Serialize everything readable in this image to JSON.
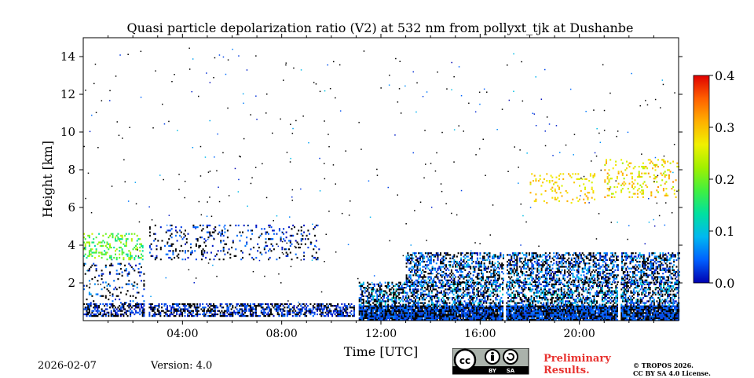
{
  "chart_data": {
    "type": "heatmap",
    "title": "Quasi particle depolarization ratio (V2) at 532 nm from pollyxt_tjk at Dushanbe",
    "xlabel": "Time [UTC]",
    "ylabel": "Height [km]",
    "x_range_hours": [
      0,
      24
    ],
    "y_range_km": [
      0,
      15
    ],
    "x_ticks": [
      {
        "value": 4,
        "label": "04:00"
      },
      {
        "value": 8,
        "label": "08:00"
      },
      {
        "value": 12,
        "label": "12:00"
      },
      {
        "value": 16,
        "label": "16:00"
      },
      {
        "value": 20,
        "label": "20:00"
      }
    ],
    "y_ticks": [
      {
        "value": 2,
        "label": "2"
      },
      {
        "value": 4,
        "label": "4"
      },
      {
        "value": 6,
        "label": "6"
      },
      {
        "value": 8,
        "label": "8"
      },
      {
        "value": 10,
        "label": "10"
      },
      {
        "value": 12,
        "label": "12"
      },
      {
        "value": 14,
        "label": "14"
      }
    ],
    "colorbar": {
      "range": [
        0.0,
        0.4
      ],
      "ticks": [
        {
          "value": 0.0,
          "label": "0.0"
        },
        {
          "value": 0.1,
          "label": "0.1"
        },
        {
          "value": 0.2,
          "label": "0.2"
        },
        {
          "value": 0.3,
          "label": "0.3"
        },
        {
          "value": 0.4,
          "label": "0.4"
        }
      ],
      "colors": [
        "#0000b0",
        "#0060ff",
        "#00b8f0",
        "#00e0a0",
        "#40f040",
        "#a0f000",
        "#f0f000",
        "#ffb000",
        "#ff6000",
        "#e00000"
      ]
    },
    "data_gaps_hours": [
      [
        2.45,
        2.6
      ],
      [
        10.9,
        11.05
      ],
      [
        16.93,
        17.03
      ],
      [
        21.55,
        21.65
      ]
    ],
    "layers": [
      {
        "name": "boundary layer night",
        "t": [
          0,
          10.9
        ],
        "h": [
          0.2,
          0.9
        ],
        "value_range": [
          0.0,
          0.05
        ],
        "density": 0.55
      },
      {
        "name": "residual aerosol night",
        "t": [
          0,
          2.45
        ],
        "h": [
          0.9,
          3.0
        ],
        "value_range": [
          0.0,
          0.08
        ],
        "density": 0.12
      },
      {
        "name": "depolarizing layer",
        "t": [
          0,
          2.4
        ],
        "h": [
          3.2,
          4.6
        ],
        "value_range": [
          0.12,
          0.25
        ],
        "density": 0.25
      },
      {
        "name": "elevated layer morning",
        "t": [
          2.6,
          9.5
        ],
        "h": [
          3.2,
          5.0
        ],
        "value_range": [
          0.0,
          0.06
        ],
        "density": 0.14
      },
      {
        "name": "surface layer",
        "t": [
          11.05,
          24
        ],
        "h": [
          0.0,
          0.8
        ],
        "value_range": [
          0.02,
          0.06
        ],
        "density": 0.95
      },
      {
        "name": "boundary layer day",
        "t": [
          11.05,
          24
        ],
        "h": [
          0.8,
          2.0
        ],
        "value_range": [
          0.0,
          0.12
        ],
        "density": 0.5
      },
      {
        "name": "mixed layer top",
        "t": [
          13.0,
          24
        ],
        "h": [
          2.0,
          3.6
        ],
        "value_range": [
          0.0,
          0.1
        ],
        "density": 0.45
      },
      {
        "name": "cirrus evening",
        "t": [
          18.0,
          20.6
        ],
        "h": [
          6.2,
          7.8
        ],
        "value_range": [
          0.25,
          0.32
        ],
        "density": 0.12
      },
      {
        "name": "cirrus night",
        "t": [
          21.0,
          24
        ],
        "h": [
          6.5,
          8.5
        ],
        "value_range": [
          0.22,
          0.33
        ],
        "density": 0.15
      }
    ]
  },
  "footer": {
    "date": "2026-02-07",
    "version": "Version: 4.0",
    "license_badge": "cc-by-sa-icon",
    "preliminary_line1": "Preliminary",
    "preliminary_line2": "Results.",
    "copyright_line1": "© TROPOS 2026.",
    "copyright_line2": "CC BY SA 4.0 License."
  }
}
